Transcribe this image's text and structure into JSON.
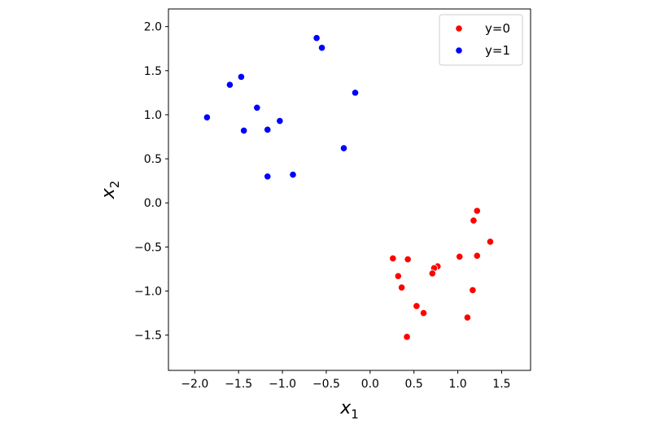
{
  "chart_data": {
    "type": "scatter",
    "xlabel": {
      "base": "x",
      "sub": "1"
    },
    "ylabel": {
      "base": "x",
      "sub": "2"
    },
    "xlim": [
      -2.3,
      1.83
    ],
    "ylim": [
      -1.9,
      2.2
    ],
    "xticks": [
      -2.0,
      -1.5,
      -1.0,
      -0.5,
      0.0,
      0.5,
      1.0,
      1.5
    ],
    "xtick_labels": [
      "−2.0",
      "−1.5",
      "−1.0",
      "−0.5",
      "0.0",
      "0.5",
      "1.0",
      "1.5"
    ],
    "yticks": [
      -1.5,
      -1.0,
      -0.5,
      0.0,
      0.5,
      1.0,
      1.5,
      2.0
    ],
    "ytick_labels": [
      "−1.5",
      "−1.0",
      "−0.5",
      "0.0",
      "0.5",
      "1.0",
      "1.5",
      "2.0"
    ],
    "grid": false,
    "legend_position": "top-right",
    "series": [
      {
        "name": "y=0",
        "color": "#ff0000",
        "points": [
          [
            1.22,
            -0.09
          ],
          [
            1.18,
            -0.2
          ],
          [
            1.37,
            -0.44
          ],
          [
            0.26,
            -0.63
          ],
          [
            0.43,
            -0.64
          ],
          [
            0.77,
            -0.72
          ],
          [
            0.73,
            -0.74
          ],
          [
            0.71,
            -0.8
          ],
          [
            1.02,
            -0.61
          ],
          [
            1.22,
            -0.6
          ],
          [
            0.32,
            -0.83
          ],
          [
            0.36,
            -0.96
          ],
          [
            1.17,
            -0.99
          ],
          [
            0.53,
            -1.17
          ],
          [
            0.61,
            -1.25
          ],
          [
            1.11,
            -1.3
          ],
          [
            0.42,
            -1.52
          ]
        ]
      },
      {
        "name": "y=1",
        "color": "#0000ff",
        "points": [
          [
            -0.61,
            1.87
          ],
          [
            -0.55,
            1.76
          ],
          [
            -1.47,
            1.43
          ],
          [
            -1.6,
            1.34
          ],
          [
            -0.17,
            1.25
          ],
          [
            -1.29,
            1.08
          ],
          [
            -1.86,
            0.97
          ],
          [
            -1.03,
            0.93
          ],
          [
            -1.17,
            0.83
          ],
          [
            -1.44,
            0.82
          ],
          [
            -0.3,
            0.62
          ],
          [
            -0.88,
            0.32
          ],
          [
            -1.17,
            0.3
          ]
        ]
      }
    ]
  }
}
